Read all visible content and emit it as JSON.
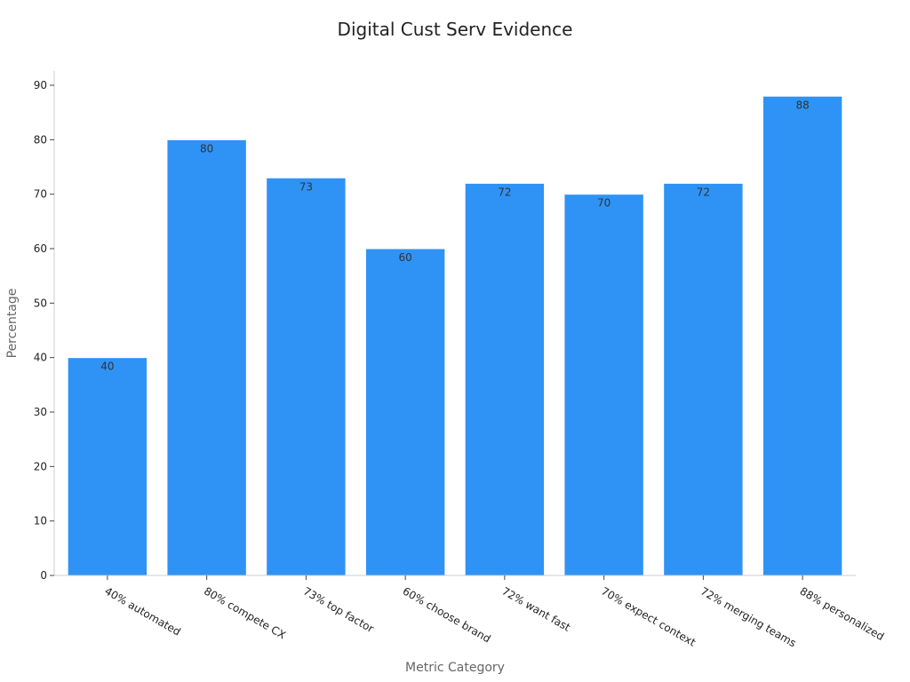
{
  "chart_data": {
    "type": "bar",
    "title": "Digital Cust Serv Evidence",
    "xlabel": "Metric Category",
    "ylabel": "Percentage",
    "categories": [
      "40% automated",
      "80% compete CX",
      "73% top factor",
      "60% choose brand",
      "72% want fast",
      "70% expect context",
      "72% merging teams",
      "88% personalized"
    ],
    "values": [
      40,
      80,
      73,
      60,
      72,
      70,
      72,
      88
    ],
    "ylim": [
      0,
      92
    ],
    "yticks": [
      0,
      10,
      20,
      30,
      40,
      50,
      60,
      70,
      80,
      90
    ],
    "grid": false,
    "legend": "none",
    "bar_color": "#2f93f5"
  }
}
